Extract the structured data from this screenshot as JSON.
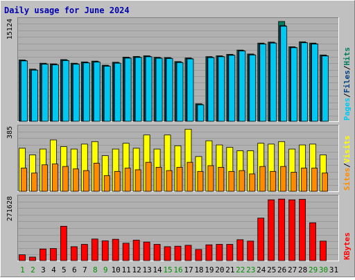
{
  "title": "Daily usage for June 2024",
  "colors": {
    "background": "#c0c0c0",
    "frame_light": "#ffffff",
    "frame_dark": "#808080",
    "plot_bg": "#b0b0b0",
    "grid": "#9a9a9a",
    "title": "#0000b0",
    "hits": "#007b5f",
    "files": "#004080",
    "pages": "#00c8f0",
    "visits": "#ffff00",
    "sites": "#ff8c00",
    "kbytes": "#ff0000",
    "weekend_day": "#009000",
    "weekday": "#000000"
  },
  "chart_data": [
    {
      "type": "bar",
      "panel": "hits-files-pages",
      "ymax_label": "15124",
      "ylim": [
        0,
        15124
      ],
      "legend": [
        {
          "key": "pages",
          "label": "Pages"
        },
        {
          "key": "sep1",
          "label": "/"
        },
        {
          "key": "files",
          "label": "Files"
        },
        {
          "key": "sep2",
          "label": "/"
        },
        {
          "key": "hits",
          "label": "Hits"
        }
      ],
      "categories": [
        "1",
        "2",
        "3",
        "4",
        "5",
        "6",
        "7",
        "8",
        "9",
        "10",
        "11",
        "12",
        "13",
        "14",
        "15",
        "16",
        "17",
        "18",
        "19",
        "20",
        "21",
        "22",
        "23",
        "24",
        "25",
        "26",
        "27",
        "28",
        "29",
        "30",
        "31"
      ],
      "series": [
        {
          "name": "Hits",
          "color_key": "hits",
          "values": [
            9300,
            7900,
            8800,
            8700,
            9350,
            8800,
            9000,
            9120,
            8500,
            8950,
            9720,
            9830,
            9930,
            9700,
            9660,
            9050,
            9600,
            2650,
            9800,
            9930,
            10150,
            10800,
            10200,
            11850,
            12000,
            15124,
            11300,
            12050,
            11850,
            10050,
            null
          ]
        },
        {
          "name": "Files",
          "color_key": "files",
          "values": [
            9200,
            7800,
            8700,
            8600,
            9250,
            8700,
            8900,
            9020,
            8400,
            8850,
            9620,
            9730,
            9830,
            9600,
            9560,
            8950,
            9500,
            2550,
            9700,
            9830,
            10050,
            10700,
            10100,
            11750,
            11900,
            14500,
            11200,
            11950,
            11750,
            9950,
            null
          ]
        },
        {
          "name": "Pages",
          "color_key": "pages",
          "values": [
            9150,
            7750,
            8650,
            8550,
            9200,
            8650,
            8850,
            8970,
            8350,
            8800,
            9570,
            9680,
            9780,
            9550,
            9510,
            8900,
            9450,
            2500,
            9650,
            9780,
            10000,
            10650,
            10050,
            11700,
            11850,
            14400,
            11150,
            11900,
            11700,
            9900,
            null
          ]
        }
      ],
      "xlabel": "",
      "ylabel": ""
    },
    {
      "type": "bar",
      "panel": "visits-sites",
      "ymax_label": "385",
      "ylim": [
        0,
        385
      ],
      "legend": [
        {
          "key": "sites",
          "label": "Sites"
        },
        {
          "key": "sep1",
          "label": "/"
        },
        {
          "key": "visits",
          "label": "Visits"
        }
      ],
      "categories": [
        "1",
        "2",
        "3",
        "4",
        "5",
        "6",
        "7",
        "8",
        "9",
        "10",
        "11",
        "12",
        "13",
        "14",
        "15",
        "16",
        "17",
        "18",
        "19",
        "20",
        "21",
        "22",
        "23",
        "24",
        "25",
        "26",
        "27",
        "28",
        "29",
        "30",
        "31"
      ],
      "series": [
        {
          "name": "Visits",
          "color_key": "visits",
          "values": [
            260,
            220,
            255,
            310,
            270,
            255,
            285,
            300,
            215,
            255,
            290,
            260,
            340,
            255,
            340,
            275,
            375,
            210,
            305,
            280,
            265,
            245,
            245,
            290,
            285,
            300,
            255,
            280,
            285,
            220,
            null
          ]
        },
        {
          "name": "Sites",
          "color_key": "sites",
          "values": [
            140,
            110,
            160,
            165,
            150,
            135,
            125,
            170,
            95,
            120,
            140,
            130,
            175,
            145,
            125,
            145,
            175,
            120,
            155,
            145,
            120,
            125,
            105,
            150,
            120,
            150,
            115,
            140,
            140,
            110,
            null
          ]
        }
      ],
      "xlabel": "",
      "ylabel": ""
    },
    {
      "type": "bar",
      "panel": "kbytes",
      "ymax_label": "271628",
      "ylim": [
        0,
        271628
      ],
      "legend": [
        {
          "key": "kbytes",
          "label": "KBytes"
        }
      ],
      "categories": [
        "1",
        "2",
        "3",
        "4",
        "5",
        "6",
        "7",
        "8",
        "9",
        "10",
        "11",
        "12",
        "13",
        "14",
        "15",
        "16",
        "17",
        "18",
        "19",
        "20",
        "21",
        "22",
        "23",
        "24",
        "25",
        "26",
        "27",
        "28",
        "29",
        "30",
        "31"
      ],
      "series": [
        {
          "name": "KBytes",
          "color_key": "kbytes",
          "values": [
            25000,
            15000,
            50000,
            52000,
            148000,
            60000,
            70000,
            93000,
            85000,
            92000,
            75000,
            88000,
            80000,
            70000,
            60000,
            62000,
            66000,
            48000,
            68000,
            70000,
            70000,
            90000,
            84000,
            183000,
            262000,
            265000,
            262000,
            264000,
            163000,
            84000,
            null
          ]
        }
      ],
      "xlabel": "",
      "ylabel": ""
    }
  ],
  "x_axis": {
    "days": [
      {
        "label": "1",
        "weekend": true
      },
      {
        "label": "2",
        "weekend": true
      },
      {
        "label": "3",
        "weekend": false
      },
      {
        "label": "4",
        "weekend": false
      },
      {
        "label": "5",
        "weekend": false
      },
      {
        "label": "6",
        "weekend": false
      },
      {
        "label": "7",
        "weekend": false
      },
      {
        "label": "8",
        "weekend": true
      },
      {
        "label": "9",
        "weekend": true
      },
      {
        "label": "10",
        "weekend": false
      },
      {
        "label": "11",
        "weekend": false
      },
      {
        "label": "12",
        "weekend": false
      },
      {
        "label": "13",
        "weekend": false
      },
      {
        "label": "14",
        "weekend": false
      },
      {
        "label": "15",
        "weekend": true
      },
      {
        "label": "16",
        "weekend": true
      },
      {
        "label": "17",
        "weekend": false
      },
      {
        "label": "18",
        "weekend": false
      },
      {
        "label": "19",
        "weekend": false
      },
      {
        "label": "20",
        "weekend": false
      },
      {
        "label": "21",
        "weekend": false
      },
      {
        "label": "22",
        "weekend": true
      },
      {
        "label": "23",
        "weekend": true
      },
      {
        "label": "24",
        "weekend": false
      },
      {
        "label": "25",
        "weekend": false
      },
      {
        "label": "26",
        "weekend": false
      },
      {
        "label": "27",
        "weekend": false
      },
      {
        "label": "28",
        "weekend": false
      },
      {
        "label": "29",
        "weekend": true
      },
      {
        "label": "30",
        "weekend": true
      },
      {
        "label": "31",
        "weekend": false
      }
    ]
  }
}
